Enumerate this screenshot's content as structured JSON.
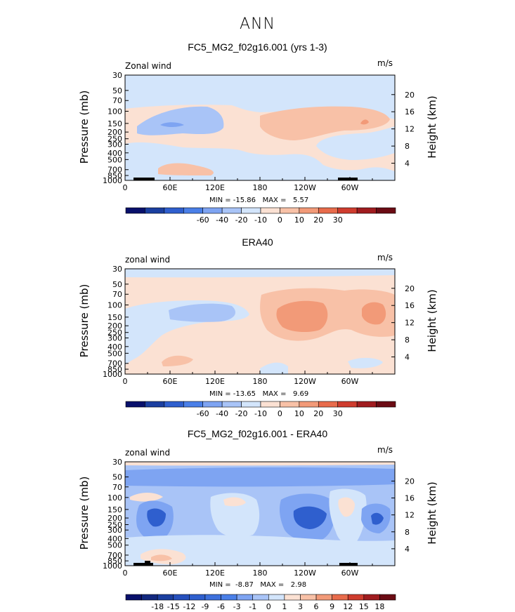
{
  "suptitle": "ANN",
  "colors": {
    "bg": "#ffffff",
    "frame": "#000000"
  },
  "panels": [
    {
      "title": "FC5_MG2_f02g16.001 (yrs 1-3)",
      "left_label": "Zonal wind",
      "right_label": "m/s",
      "min_max": "MIN = -15.86   MAX =   5.57",
      "ylabel": "Pressure (mb)",
      "y2label": "Height (km)",
      "colorbar": {
        "labels": [
          "-60",
          "-40",
          "-20",
          "-10",
          "0",
          "10",
          "20",
          "30"
        ],
        "colors": [
          "#08106b",
          "#1b3fa0",
          "#2f5fce",
          "#4a7fe8",
          "#7ea4f2",
          "#a9c4f7",
          "#d3e5fb",
          "#fbe1d3",
          "#f8c1a7",
          "#f29a78",
          "#e86b4b",
          "#cf3c2e",
          "#a01c1f",
          "#6b0b14"
        ]
      }
    },
    {
      "title": "ERA40",
      "left_label": "zonal wind",
      "right_label": "m/s",
      "min_max": "MIN = -13.65   MAX =   9.69",
      "ylabel": "Pressure (mb)",
      "y2label": "Height (km)",
      "colorbar": {
        "labels": [
          "-60",
          "-40",
          "-20",
          "-10",
          "0",
          "10",
          "20",
          "30"
        ],
        "colors": [
          "#08106b",
          "#1b3fa0",
          "#2f5fce",
          "#4a7fe8",
          "#7ea4f2",
          "#a9c4f7",
          "#d3e5fb",
          "#fbe1d3",
          "#f8c1a7",
          "#f29a78",
          "#e86b4b",
          "#cf3c2e",
          "#a01c1f",
          "#6b0b14"
        ]
      }
    },
    {
      "title": "FC5_MG2_f02g16.001 - ERA40",
      "left_label": "zonal wind",
      "right_label": "m/s",
      "min_max": "MIN =  -8.87   MAX =   2.98",
      "ylabel": "Pressure (mb)",
      "y2label": "Height (km)",
      "colorbar": {
        "labels": [
          "-18",
          "-15",
          "-12",
          "-9",
          "-6",
          "-3",
          "-1",
          "0",
          "1",
          "3",
          "6",
          "9",
          "12",
          "15",
          "18"
        ],
        "colors": [
          "#08106b",
          "#12287f",
          "#1b3fa0",
          "#2650bd",
          "#2f5fce",
          "#3d70dc",
          "#4a7fe8",
          "#7ea4f2",
          "#a9c4f7",
          "#d3e5fb",
          "#fbe1d3",
          "#f8c1a7",
          "#f29a78",
          "#e86b4b",
          "#cf3c2e",
          "#a01c1f",
          "#6b0b14"
        ]
      }
    }
  ],
  "chart_data": {
    "type": "heatmap",
    "x_ticks": [
      "0",
      "60E",
      "120E",
      "180",
      "120W",
      "60W"
    ],
    "y_ticks_pressure": [
      "30",
      "50",
      "70",
      "100",
      "150",
      "200",
      "250",
      "300",
      "400",
      "500",
      "700",
      "850",
      "1000"
    ],
    "y_ticks_height": [
      "20",
      "16",
      "12",
      "8",
      "4"
    ],
    "xlim": [
      0,
      360
    ],
    "ylim_pressure": [
      1000,
      30
    ],
    "log_scale_y": true
  }
}
